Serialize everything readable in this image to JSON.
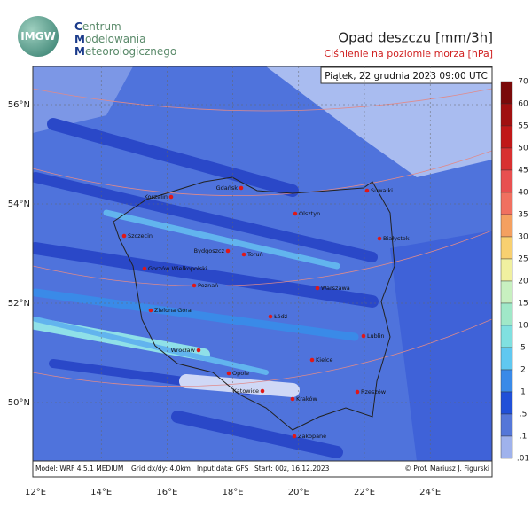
{
  "header": {
    "logo": "IMGW",
    "org": [
      "Centrum",
      "Modelowania",
      "Meteorologicznego"
    ]
  },
  "title": "Opad deszczu [mm/3h]",
  "subtitle": "Ciśnienie na poziomie morza [hPa]",
  "valid_time": "Piątek, 22 grudnia 2023 09:00 UTC",
  "map": {
    "lat_labels": [
      "56°N",
      "54°N",
      "52°N",
      "50°N"
    ],
    "lon_labels": [
      "12°E",
      "14°E",
      "16°E",
      "18°E",
      "20°E",
      "22°E",
      "24°E"
    ],
    "cities": [
      "Gdańsk",
      "Koszalin",
      "Szczecin",
      "Olsztyn",
      "Suwałki",
      "Białystok",
      "Bydgoszcz",
      "Toruń",
      "Gorzów Wielkopolski",
      "Poznań",
      "Warszawa",
      "Zielona Góra",
      "Łódź",
      "Lublin",
      "Wrocław",
      "Kielce",
      "Opole",
      "Katowice",
      "Rzeszów",
      "Kraków",
      "Zakopane"
    ]
  },
  "colorbar": {
    "labels": [
      "70",
      "60",
      "55",
      "50",
      "45",
      "40",
      "35",
      "30",
      "25",
      "20",
      "15",
      "10",
      "5",
      "2",
      "1",
      ".5",
      ".1",
      ".01"
    ],
    "colors": [
      "#7a0a0a",
      "#a01010",
      "#c01818",
      "#d83030",
      "#e85050",
      "#f07060",
      "#f4a060",
      "#f8d070",
      "#f0f0a0",
      "#c8f0c0",
      "#a0e8c8",
      "#80e0e0",
      "#60c8f0",
      "#3a8ae8",
      "#2050d8",
      "#5577d8",
      "#9fb2ec"
    ]
  },
  "footer": {
    "model": "Model: WRF 4.5.1 MEDIUM",
    "grid": "Grid dx/dy: 4.0km",
    "input": "Input data: GFS",
    "start": "Start: 00z, 16.12.2023",
    "credit": "© Prof. Mariusz J. Figurski"
  }
}
